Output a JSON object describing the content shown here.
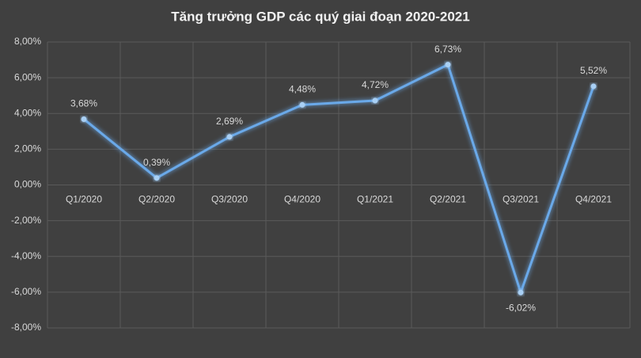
{
  "chart_data": {
    "type": "line",
    "title": "Tăng trưởng GDP các quý giai đoạn 2020-2021",
    "categories": [
      "Q1/2020",
      "Q2/2020",
      "Q3/2020",
      "Q4/2020",
      "Q1/2021",
      "Q2/2021",
      "Q3/2021",
      "Q4/2021"
    ],
    "values": [
      3.68,
      0.39,
      2.69,
      4.48,
      4.72,
      6.73,
      -6.02,
      5.52
    ],
    "value_labels": [
      "3,68%",
      "0,39%",
      "2,69%",
      "4,48%",
      "4,72%",
      "6,73%",
      "-6,02%",
      "5,52%"
    ],
    "color": "#6aa9e9",
    "ylim": [
      -8,
      8
    ],
    "yticks": [
      {
        "value": -8,
        "label": "-8,00%"
      },
      {
        "value": -6,
        "label": "-6,00%"
      },
      {
        "value": -4,
        "label": "-4,00%"
      },
      {
        "value": -2,
        "label": "-2,00%"
      },
      {
        "value": 0,
        "label": "0,00%"
      },
      {
        "value": 2,
        "label": "2,00%"
      },
      {
        "value": 4,
        "label": "4,00%"
      },
      {
        "value": 6,
        "label": "6,00%"
      },
      {
        "value": 8,
        "label": "8,00%"
      }
    ],
    "grid": true
  }
}
